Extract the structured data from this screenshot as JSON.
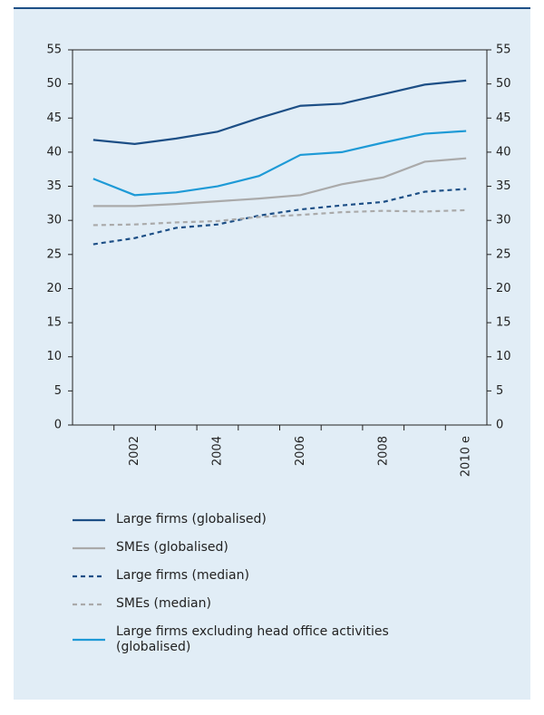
{
  "chart_data": {
    "type": "line",
    "categories": [
      null,
      "2002",
      null,
      "2004",
      null,
      "2006",
      null,
      "2008",
      null,
      "2010 e"
    ],
    "series": [
      {
        "name": "Large firms (globalised)",
        "color": "#1d4f86",
        "dashed": false,
        "values": [
          41.8,
          41.2,
          42.0,
          43.0,
          45.0,
          46.8,
          47.1,
          48.5,
          49.9,
          50.5
        ]
      },
      {
        "name": "SMEs (globalised)",
        "color": "#aaaaaa",
        "dashed": false,
        "values": [
          32.1,
          32.1,
          32.4,
          32.8,
          33.2,
          33.7,
          35.3,
          36.3,
          38.6,
          39.1
        ]
      },
      {
        "name": "Large firms (median)",
        "color": "#1d4f86",
        "dashed": true,
        "values": [
          26.5,
          27.4,
          28.9,
          29.4,
          30.7,
          31.6,
          32.2,
          32.7,
          34.2,
          34.6
        ]
      },
      {
        "name": "SMEs (median)",
        "color": "#aaaaaa",
        "dashed": true,
        "values": [
          29.3,
          29.4,
          29.7,
          29.9,
          30.5,
          30.8,
          31.2,
          31.4,
          31.3,
          31.5
        ]
      },
      {
        "name": "Large firms excluding head office activities (globalised)",
        "color": "#1e9ad6",
        "dashed": false,
        "values": [
          36.1,
          33.7,
          34.1,
          35.0,
          36.5,
          39.6,
          40.0,
          41.4,
          42.7,
          43.1
        ]
      }
    ],
    "ylim": [
      0,
      55
    ],
    "yticks": [
      0,
      5,
      10,
      15,
      20,
      25,
      30,
      35,
      40,
      45,
      50,
      55
    ],
    "y2lim": [
      0,
      55
    ],
    "y2ticks": [
      0,
      5,
      10,
      15,
      20,
      25,
      30,
      35,
      40,
      45,
      50,
      55
    ],
    "grid": false,
    "legend": "bottom"
  }
}
